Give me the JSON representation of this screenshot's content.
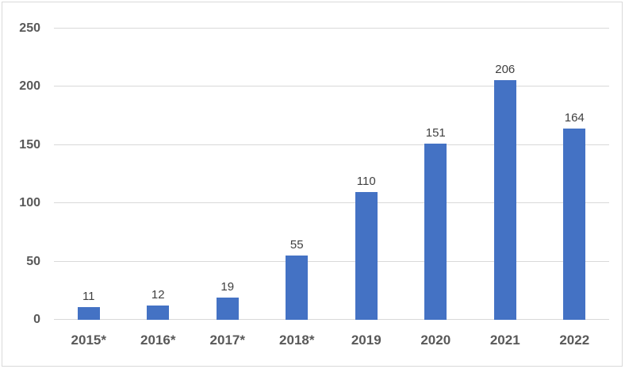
{
  "chart_data": {
    "type": "bar",
    "title": "",
    "xlabel": "",
    "ylabel": "",
    "categories": [
      "2015*",
      "2016*",
      "2017*",
      "2018*",
      "2019",
      "2020",
      "2021",
      "2022"
    ],
    "values": [
      11,
      12,
      19,
      55,
      110,
      151,
      206,
      164
    ],
    "ylim": [
      0,
      250
    ],
    "yticks": [
      0,
      50,
      100,
      150,
      200,
      250
    ],
    "grid": true,
    "legend_position": "none",
    "data_labels_shown": true,
    "colors": {
      "bar": "#4472C4",
      "gridline": "#D9D9D9",
      "axis_line": "#D9D9D9",
      "tick_label": "#595959",
      "data_label": "#404040",
      "chart_border": "#D9D9D9",
      "background": "#FFFFFF"
    }
  }
}
